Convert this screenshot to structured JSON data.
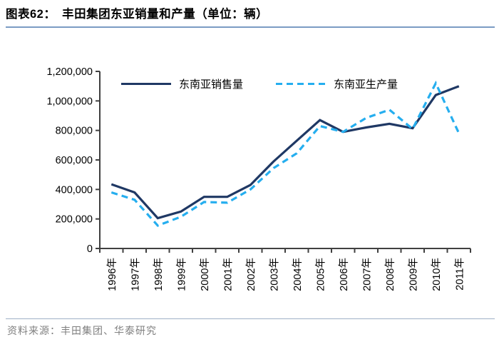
{
  "header": {
    "title": "图表62：　丰田集团东亚销量和产量（单位：辆）"
  },
  "footer": {
    "source": "资料来源：丰田集团、华泰研究"
  },
  "colors": {
    "sales_line": "#1F3864",
    "production_line": "#25AEEF",
    "axis": "#404040",
    "title_rule": "#7B9CC4",
    "footer_rule": "#9FB0C6",
    "source_text": "#808080"
  },
  "chart_data": {
    "type": "line",
    "title": "丰田集团东亚销量和产量（单位：辆）",
    "categories": [
      "1996年",
      "1997年",
      "1998年",
      "1999年",
      "2000年",
      "2001年",
      "2002年",
      "2003年",
      "2004年",
      "2005年",
      "2006年",
      "2007年",
      "2008年",
      "2009年",
      "2010年",
      "2011年"
    ],
    "series": [
      {
        "name": "东南亚销售量",
        "style": "solid",
        "color": "#1F3864",
        "values": [
          435000,
          380000,
          205000,
          250000,
          350000,
          350000,
          430000,
          590000,
          730000,
          870000,
          790000,
          820000,
          845000,
          815000,
          1040000,
          1100000
        ]
      },
      {
        "name": "东南亚生产量",
        "style": "dashed",
        "color": "#25AEEF",
        "values": [
          380000,
          330000,
          155000,
          215000,
          315000,
          310000,
          400000,
          545000,
          645000,
          830000,
          790000,
          885000,
          940000,
          810000,
          1120000,
          780000
        ]
      }
    ],
    "xlabel": "",
    "ylabel": "",
    "ylim": [
      0,
      1200000
    ],
    "y_ticks": [
      0,
      200000,
      400000,
      600000,
      800000,
      1000000,
      1200000
    ],
    "y_tick_labels": [
      "0",
      "200,000",
      "400,000",
      "600,000",
      "800,000",
      "1,000,000",
      "1,200,000"
    ],
    "x_labels_rotated": true,
    "grid": false,
    "legend_position": "top-inside"
  }
}
